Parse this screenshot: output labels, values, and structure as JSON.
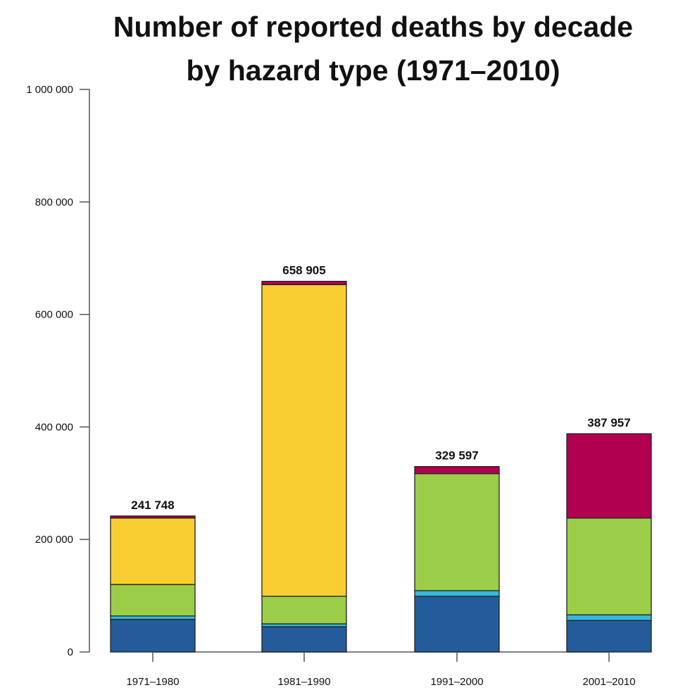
{
  "chart_data": {
    "type": "bar",
    "stacked": true,
    "title": "Number of reported deaths by decade by hazard type (1971–2010)",
    "title_lines": [
      "Number of reported deaths by decade",
      "by hazard type (1971–2010)"
    ],
    "xlabel": "",
    "ylabel": "",
    "ylim": [
      0,
      1000000
    ],
    "yticks": [
      0,
      200000,
      400000,
      600000,
      800000,
      1000000
    ],
    "ytick_labels": [
      "0",
      "200 000",
      "400 000",
      "600 000",
      "800 000",
      "1 000 000"
    ],
    "grid": false,
    "legend": "none",
    "categories": [
      "1971–1980",
      "1981–1990",
      "1991–2000",
      "2001–2010"
    ],
    "totals": [
      241748,
      658905,
      329597,
      387957
    ],
    "total_labels": [
      "241 748",
      "658 905",
      "329 597",
      "387 957"
    ],
    "series": [
      {
        "color": "#245b9a",
        "values": [
          58000,
          45000,
          99000,
          56000
        ]
      },
      {
        "color": "#35b8e0",
        "values": [
          6000,
          5000,
          10000,
          10000
        ]
      },
      {
        "color": "#9bcd48",
        "values": [
          56000,
          49000,
          208000,
          172000
        ]
      },
      {
        "color": "#f8cd31",
        "values": [
          118000,
          554000,
          0,
          0
        ]
      },
      {
        "color": "#b1004f",
        "values": [
          3748,
          5905,
          12597,
          149957
        ]
      }
    ]
  }
}
